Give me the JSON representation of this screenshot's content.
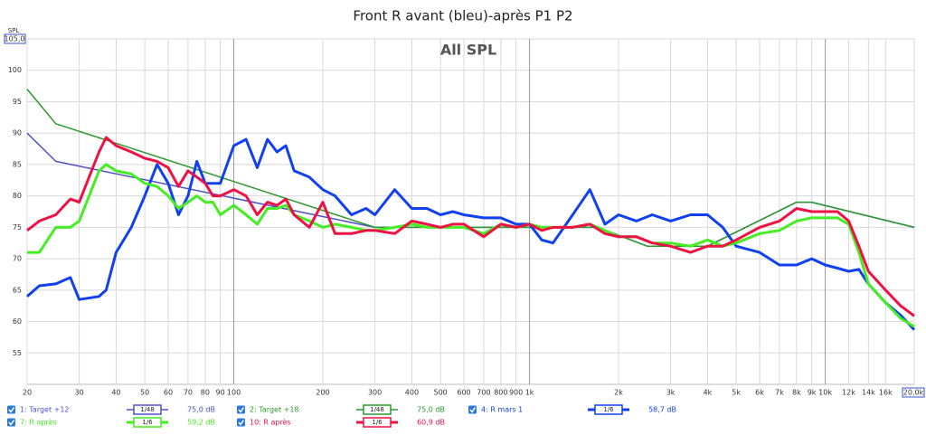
{
  "chart_data": {
    "type": "line",
    "title": "Front R avant (bleu)-après P1 P2",
    "annotation": "All SPL",
    "ylabel": "SPL",
    "xscale": "log",
    "grid": true,
    "xlim": [
      20,
      20000
    ],
    "ylim": [
      50,
      105
    ],
    "yticks": [
      55,
      60,
      65,
      70,
      75,
      80,
      85,
      90,
      95,
      100,
      {
        "value": 105,
        "label": "105,0"
      }
    ],
    "xticks": [
      20,
      30,
      40,
      50,
      60,
      70,
      80,
      90,
      100,
      200,
      300,
      400,
      500,
      600,
      700,
      800,
      900,
      {
        "value": 1000,
        "label": "1k"
      },
      {
        "value": 2000,
        "label": "2k"
      },
      {
        "value": 3000,
        "label": "3k"
      },
      {
        "value": 4000,
        "label": "4k"
      },
      {
        "value": 5000,
        "label": "5k"
      },
      {
        "value": 6000,
        "label": "6k"
      },
      {
        "value": 7000,
        "label": "7k"
      },
      {
        "value": 8000,
        "label": "8k"
      },
      {
        "value": 9000,
        "label": "9k"
      },
      {
        "value": 10000,
        "label": "10k"
      },
      {
        "value": 12000,
        "label": "12k"
      },
      {
        "value": 14000,
        "label": "14k"
      },
      {
        "value": 16000,
        "label": "16k"
      },
      {
        "value": 20000,
        "label": "20,0k"
      }
    ],
    "x": [
      20,
      22,
      25,
      28,
      30,
      35,
      37,
      40,
      45,
      50,
      55,
      60,
      65,
      70,
      75,
      80,
      85,
      90,
      100,
      110,
      120,
      130,
      140,
      150,
      160,
      180,
      200,
      220,
      250,
      280,
      300,
      350,
      400,
      450,
      500,
      550,
      600,
      700,
      800,
      900,
      1000,
      1100,
      1200,
      1400,
      1600,
      1800,
      2000,
      2300,
      2600,
      3000,
      3500,
      4000,
      4500,
      5000,
      6000,
      7000,
      8000,
      9000,
      10000,
      11000,
      12000,
      13000,
      14000,
      16000,
      18000,
      20000
    ],
    "series": [
      {
        "name": "1: Target +12",
        "color": "#5050c8",
        "smoothing": "1/48",
        "readout": "75,0 dB",
        "width": 1.5,
        "x": [
          20,
          25,
          300,
          1700,
          2500,
          4000,
          8000,
          9000,
          20000
        ],
        "values": [
          90,
          85.5,
          75,
          75,
          72,
          72,
          79,
          79,
          75
        ]
      },
      {
        "name": "2: Target +18",
        "color": "#2a9a2a",
        "smoothing": "1/48",
        "readout": "75,0 dB",
        "width": 1.5,
        "x": [
          20,
          25,
          300,
          1700,
          2500,
          4000,
          8000,
          9000,
          20000
        ],
        "values": [
          97,
          91.5,
          75,
          75,
          72,
          72,
          79,
          79,
          75
        ]
      },
      {
        "name": "4: R mars 1",
        "color": "#1040f0",
        "smoothing": "1/6",
        "readout": "58,7 dB",
        "width": 3,
        "values": [
          64,
          65.7,
          66,
          67,
          63.5,
          64,
          65,
          71,
          75,
          80,
          85,
          82,
          77,
          80,
          85.5,
          82,
          82,
          82,
          88,
          89,
          84.5,
          89,
          87,
          88,
          84,
          83,
          81,
          80,
          77,
          78,
          77,
          81,
          78,
          78,
          77,
          77.5,
          77,
          76.5,
          76.5,
          75.5,
          75.5,
          73,
          72.5,
          77,
          81,
          75.5,
          77,
          76,
          77,
          76,
          77,
          77,
          75,
          72,
          71,
          69,
          69,
          70,
          69,
          68.5,
          68,
          68.3,
          66,
          63,
          61,
          58.7
        ]
      },
      {
        "name": "7: R après",
        "color": "#44ee22",
        "smoothing": "1/6",
        "readout": "59,2 dB",
        "width": 3,
        "values": [
          71,
          71,
          75,
          75,
          76,
          84,
          85,
          84,
          83.5,
          82,
          81.5,
          80,
          78,
          79,
          80,
          79,
          79,
          77,
          78.5,
          77,
          75.5,
          78,
          78,
          78.5,
          77,
          76,
          75,
          75.5,
          75,
          74.5,
          74.5,
          75,
          75.5,
          75,
          75,
          75,
          75,
          74,
          75.5,
          75,
          75.5,
          75,
          75,
          75,
          75.5,
          74.5,
          73.5,
          73.5,
          72.5,
          72.5,
          72,
          73,
          72,
          72.5,
          74,
          74.5,
          76,
          76.5,
          76.5,
          76.5,
          75.5,
          71,
          66,
          63,
          60.5,
          59.2
        ]
      },
      {
        "name": "10: R après",
        "color": "#ee1144",
        "smoothing": "1/6",
        "readout": "60,9 dB",
        "width": 3,
        "values": [
          74.5,
          76,
          77,
          79.5,
          79,
          87,
          89.3,
          88,
          87,
          86,
          85.5,
          84.5,
          81.5,
          84,
          83,
          82,
          80,
          80,
          81,
          80,
          77,
          79,
          78.5,
          79.5,
          77,
          75,
          79,
          74,
          74,
          74.5,
          74.5,
          74,
          76,
          75.5,
          75,
          75.5,
          75.5,
          73.5,
          75.5,
          75,
          75.5,
          74.5,
          75,
          75,
          75.5,
          74,
          73.5,
          73.5,
          72.5,
          72,
          71,
          72,
          72,
          73,
          75,
          76,
          78,
          77.5,
          77.5,
          77.5,
          76,
          72,
          68,
          65,
          62.5,
          60.9
        ]
      }
    ]
  }
}
